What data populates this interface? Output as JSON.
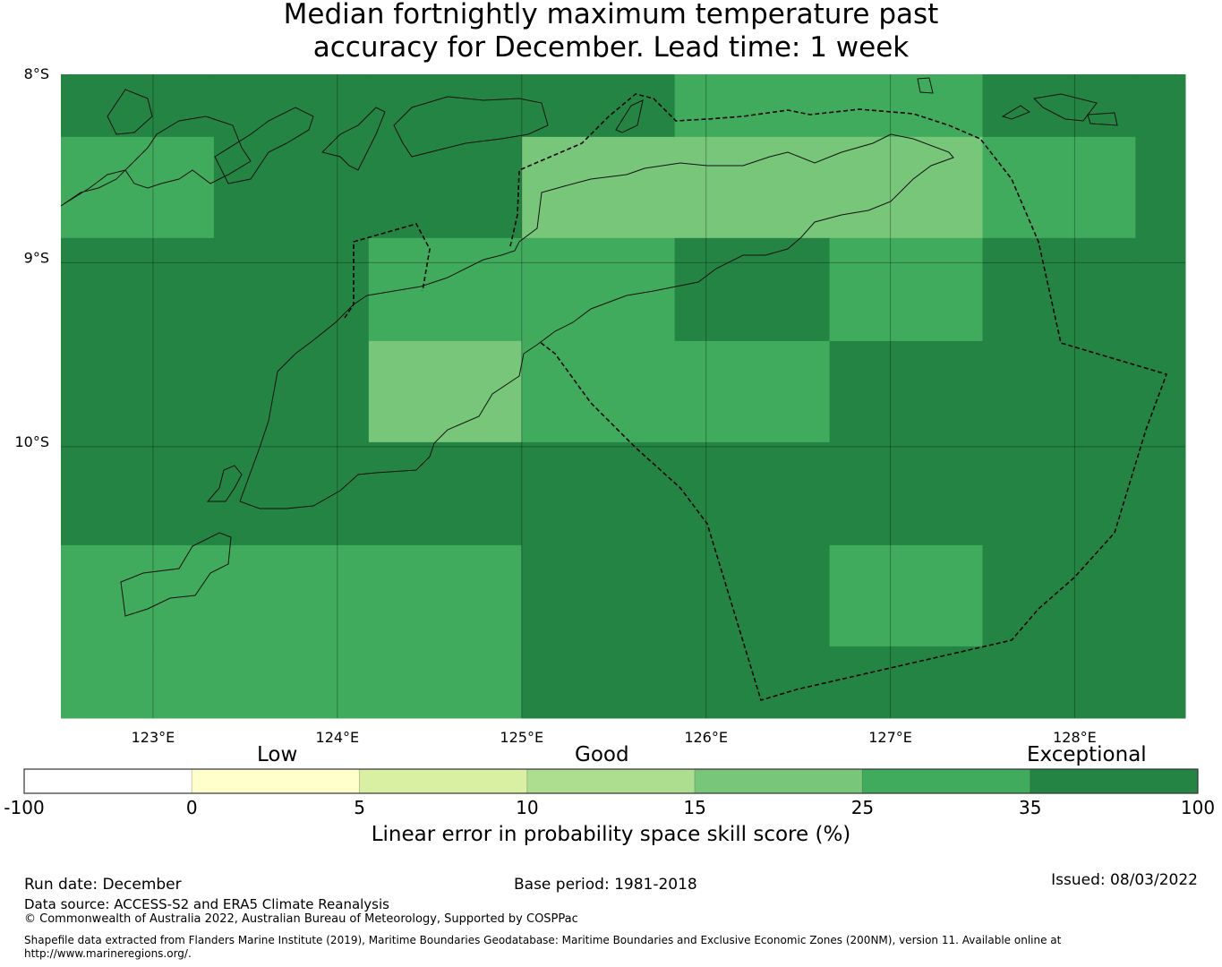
{
  "title_line1": "Median fortnightly maximum temperature past",
  "title_line2": "accuracy for December. Lead time: 1 week",
  "chart_data": {
    "type": "heatmap",
    "title": "Median fortnightly maximum temperature past accuracy for December. Lead time: 1 week",
    "xlabel": "",
    "ylabel": "",
    "lon_range": [
      122.5,
      128.6
    ],
    "lat_range": [
      -8.0,
      -11.5
    ],
    "x_ticks": [
      123,
      124,
      125,
      126,
      127,
      128
    ],
    "x_tick_labels": [
      "123°E",
      "124°E",
      "125°E",
      "126°E",
      "127°E",
      "128°E"
    ],
    "y_ticks": [
      -8,
      -9,
      -10
    ],
    "y_tick_labels": [
      "8°S",
      "9°S",
      "10°S"
    ],
    "grid": true,
    "lon_edges": [
      122.5,
      123.33,
      124.17,
      125.0,
      125.83,
      126.67,
      127.5,
      128.33,
      128.6
    ],
    "lat_edges": [
      -8.0,
      -8.34,
      -8.89,
      -9.45,
      -10.0,
      -10.56,
      -11.11,
      -11.5
    ],
    "cell_bins": [
      [
        6,
        6,
        6,
        6,
        5,
        5,
        6,
        6
      ],
      [
        5,
        6,
        6,
        4,
        4,
        4,
        5,
        6
      ],
      [
        6,
        6,
        5,
        5,
        6,
        5,
        6,
        6
      ],
      [
        6,
        6,
        4,
        5,
        5,
        6,
        6,
        6
      ],
      [
        6,
        6,
        6,
        6,
        6,
        6,
        6,
        6
      ],
      [
        5,
        5,
        5,
        6,
        6,
        5,
        6,
        6
      ],
      [
        5,
        5,
        5,
        6,
        6,
        6,
        6,
        6
      ]
    ],
    "colorbar": {
      "label": "Linear error in probability space skill score (%)",
      "boundaries": [
        "-100",
        "0",
        "5",
        "10",
        "15",
        "25",
        "35",
        "100"
      ],
      "colors": [
        "#ffffff",
        "#ffffcc",
        "#d9f0a3",
        "#addd8e",
        "#78c679",
        "#41ab5d",
        "#238443"
      ],
      "categories": [
        "Low",
        "Good",
        "Exceptional"
      ]
    }
  },
  "footer": {
    "run_date": "Run date: December",
    "base_period": "Base period: 1981-2018",
    "issued": "Issued: 08/03/2022",
    "data_source": "Data source: ACCESS-S2 and ERA5 Climate Reanalysis",
    "copyright": "© Commonwealth of Australia 2022, Australian Bureau of Meteorology, Supported by COSPPac",
    "shapefile_line1": "Shapefile data extracted from Flanders Marine Institute (2019), Maritime Boundaries Geodatabase: Maritime Boundaries and Exclusive Economic Zones (200NM), version 11. Available online at",
    "shapefile_line2": "http://www.marineregions.org/."
  }
}
